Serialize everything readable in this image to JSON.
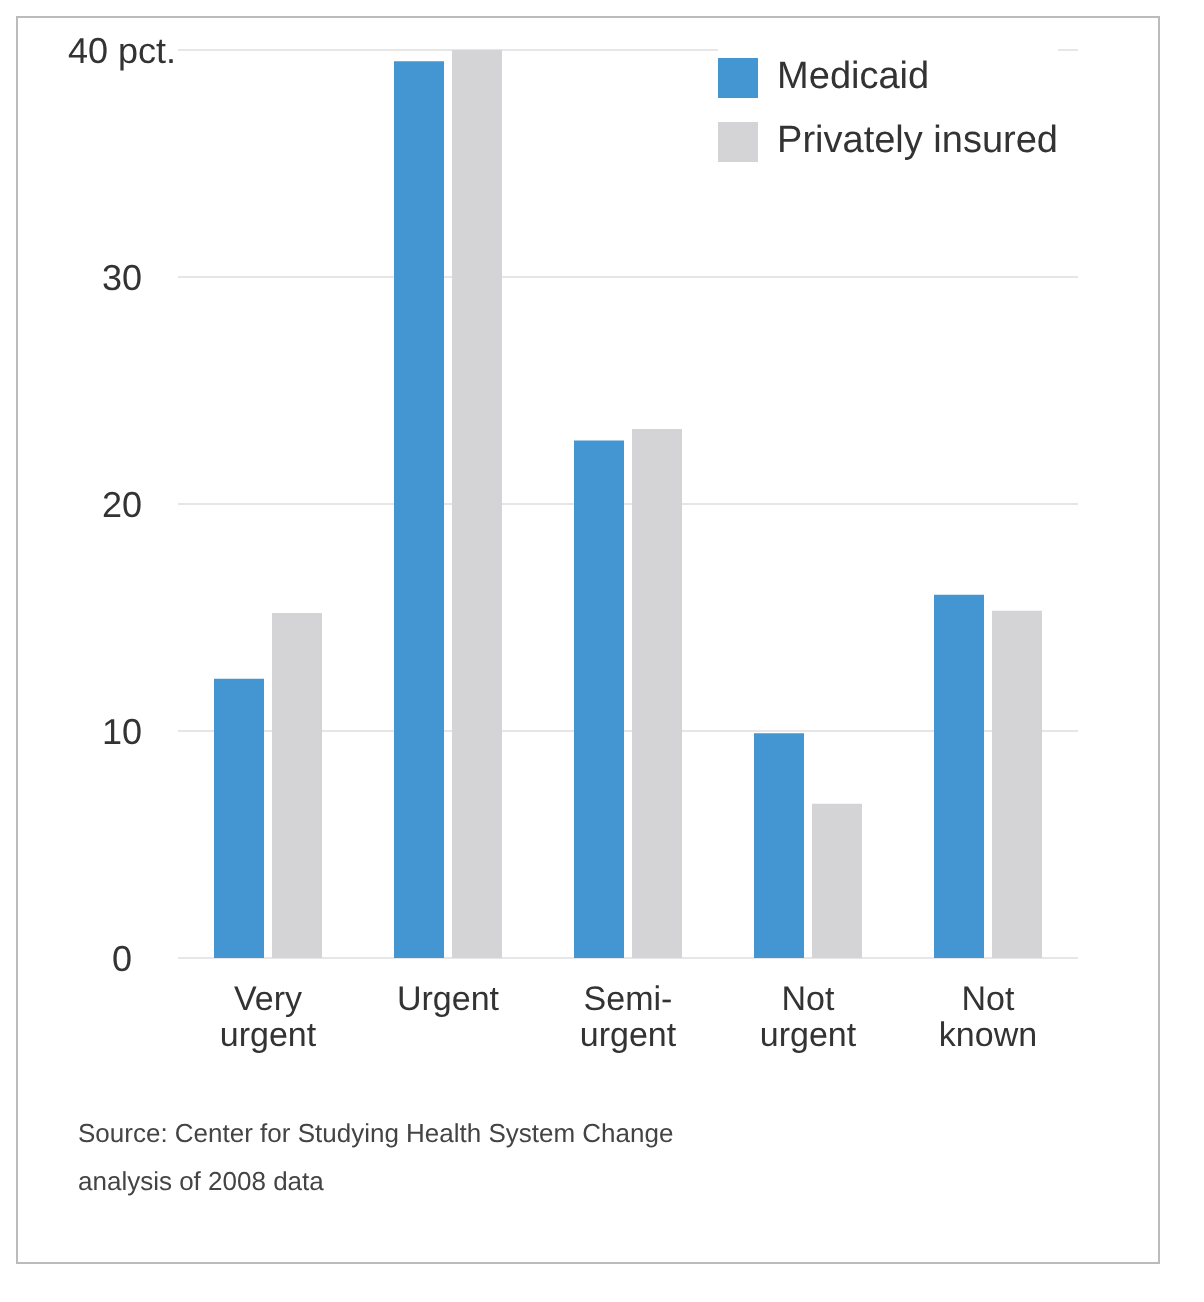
{
  "chart_data": {
    "type": "bar",
    "categories": [
      "Very urgent",
      "Urgent",
      "Semi-urgent",
      "Not urgent",
      "Not known"
    ],
    "series": [
      {
        "name": "Medicaid",
        "color": "#4396d2",
        "values": [
          12.3,
          39.5,
          22.8,
          9.9,
          16.0
        ]
      },
      {
        "name": "Privately insured",
        "color": "#d4d4d6",
        "values": [
          15.2,
          40,
          23.3,
          6.8,
          15.3
        ]
      }
    ],
    "ylim": [
      0,
      40
    ],
    "yticks": [
      0,
      10,
      20,
      30,
      {
        "value": 40,
        "label": "40 pct."
      }
    ],
    "grid": "y",
    "legend": "top right",
    "annotations": [
      "Source: Center for Studying Health System Change analysis of 2008 data"
    ]
  }
}
